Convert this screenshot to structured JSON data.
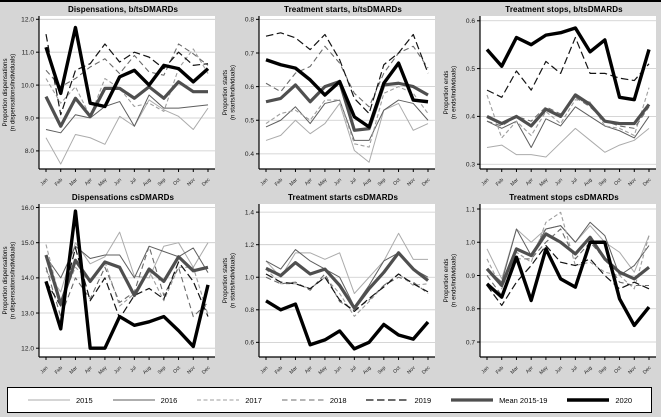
{
  "figure": {
    "background": "#d6d6d6",
    "plot_background": "#ffffff",
    "gridline_color": "#c9c9c9",
    "axis_color": "#000000",
    "tick_label_color": "#1a1a1a"
  },
  "months": [
    "Jan",
    "Feb",
    "Mar",
    "Apr",
    "May",
    "Jun",
    "Jul",
    "Aug",
    "Sep",
    "Oct",
    "Nov",
    "Dec"
  ],
  "legend": {
    "items": [
      {
        "label": "2015",
        "color": "#ababab",
        "width": 1,
        "dash": ""
      },
      {
        "label": "2016",
        "color": "#5e5e5e",
        "width": 1,
        "dash": ""
      },
      {
        "label": "2017",
        "color": "#9e9e9e",
        "width": 1.1,
        "dash": "4,2.5"
      },
      {
        "label": "2018",
        "color": "#6b6b6b",
        "width": 1.1,
        "dash": "5.5,3.5"
      },
      {
        "label": "2019",
        "color": "#141414",
        "width": 1.2,
        "dash": "7.5,3.5"
      },
      {
        "label": "Mean 2015-19",
        "color": "#4f4f4f",
        "width": 3.2,
        "dash": ""
      },
      {
        "label": "2020",
        "color": "#000000",
        "width": 3.4,
        "dash": ""
      }
    ]
  },
  "chart_data": [
    {
      "type": "line",
      "title": "Dispensations, b/tsDMARDs",
      "ylabel": "Proportion dispensations",
      "ylabel2": "(n dispensations/individuals)",
      "ylim": [
        7.45,
        12.1
      ],
      "yticks": [
        {
          "v": 8,
          "label": "8.0"
        },
        {
          "v": 9,
          "label": "9.0"
        },
        {
          "v": 10,
          "label": "10.0"
        },
        {
          "v": 11,
          "label": "11.0"
        },
        {
          "v": 12,
          "label": "12.0"
        }
      ],
      "series": [
        {
          "name": "2015",
          "values": [
            8.4,
            7.6,
            8.5,
            8.4,
            8.2,
            9.05,
            8.75,
            9.55,
            9.25,
            9.05,
            8.65,
            9.3
          ]
        },
        {
          "name": "2016",
          "values": [
            8.65,
            8.55,
            9.1,
            9.0,
            9.35,
            9.5,
            8.75,
            9.7,
            9.3,
            9.3,
            9.35,
            9.4
          ]
        },
        {
          "name": "2017",
          "values": [
            10.2,
            9.45,
            9.95,
            9.05,
            10.2,
            9.9,
            9.35,
            9.45,
            9.2,
            10.5,
            11.1,
            10.35
          ]
        },
        {
          "name": "2018",
          "values": [
            10.45,
            9.95,
            10.2,
            10.55,
            10.8,
            10.35,
            10.9,
            10.4,
            10.3,
            11.25,
            10.95,
            10.6
          ]
        },
        {
          "name": "2019",
          "values": [
            11.55,
            9.1,
            10.45,
            10.65,
            11.25,
            10.7,
            11.0,
            10.85,
            10.5,
            11.0,
            10.6,
            10.65
          ]
        },
        {
          "name": "Mean 2015-19",
          "values": [
            9.65,
            8.75,
            9.6,
            9.05,
            9.9,
            9.9,
            9.6,
            9.95,
            9.6,
            10.1,
            9.8,
            9.8
          ]
        },
        {
          "name": "2020",
          "values": [
            11.15,
            9.75,
            11.75,
            9.45,
            9.35,
            10.25,
            10.45,
            10.0,
            10.6,
            10.5,
            10.1,
            10.5
          ]
        }
      ]
    },
    {
      "type": "line",
      "title": "Treatment starts, b/tsDMARDs",
      "ylabel": "Proportion starts",
      "ylabel2": "(n starts/individuals)",
      "ylim": [
        0.355,
        0.81
      ],
      "yticks": [
        {
          "v": 0.4,
          "label": "0.4"
        },
        {
          "v": 0.5,
          "label": "0.5"
        },
        {
          "v": 0.6,
          "label": "0.6"
        },
        {
          "v": 0.7,
          "label": "0.7"
        },
        {
          "v": 0.8,
          "label": "0.8"
        }
      ],
      "series": [
        {
          "name": "2015",
          "values": [
            0.44,
            0.455,
            0.5,
            0.46,
            0.49,
            0.55,
            0.41,
            0.375,
            0.53,
            0.55,
            0.47,
            0.49
          ]
        },
        {
          "name": "2016",
          "values": [
            0.48,
            0.5,
            0.54,
            0.49,
            0.55,
            0.56,
            0.44,
            0.44,
            0.53,
            0.56,
            0.55,
            0.5
          ]
        },
        {
          "name": "2017",
          "values": [
            0.49,
            0.52,
            0.53,
            0.5,
            0.56,
            0.56,
            0.43,
            0.42,
            0.58,
            0.6,
            0.58,
            0.52
          ]
        },
        {
          "name": "2018",
          "values": [
            0.61,
            0.585,
            0.64,
            0.66,
            0.72,
            0.67,
            0.58,
            0.54,
            0.64,
            0.7,
            0.72,
            0.655
          ]
        },
        {
          "name": "2019",
          "values": [
            0.75,
            0.76,
            0.745,
            0.71,
            0.755,
            0.68,
            0.565,
            0.52,
            0.665,
            0.7,
            0.755,
            0.64
          ]
        },
        {
          "name": "Mean 2015-19",
          "values": [
            0.555,
            0.565,
            0.605,
            0.555,
            0.6,
            0.615,
            0.47,
            0.475,
            0.605,
            0.61,
            0.6,
            0.575
          ]
        },
        {
          "name": "2020",
          "values": [
            0.68,
            0.665,
            0.655,
            0.62,
            0.575,
            0.615,
            0.51,
            0.48,
            0.61,
            0.67,
            0.56,
            0.555
          ]
        }
      ]
    },
    {
      "type": "line",
      "title": "Treatment stops, b/tsDMARDs",
      "ylabel": "Proportion ends",
      "ylabel2": "(n ends/individuals)",
      "ylim": [
        0.29,
        0.61
      ],
      "yticks": [
        {
          "v": 0.3,
          "label": "0.3"
        },
        {
          "v": 0.4,
          "label": "0.4"
        },
        {
          "v": 0.5,
          "label": "0.5"
        },
        {
          "v": 0.6,
          "label": "0.6"
        }
      ],
      "series": [
        {
          "name": "2015",
          "values": [
            0.335,
            0.34,
            0.32,
            0.32,
            0.315,
            0.345,
            0.375,
            0.35,
            0.325,
            0.34,
            0.35,
            0.375
          ]
        },
        {
          "name": "2016",
          "values": [
            0.39,
            0.375,
            0.39,
            0.335,
            0.395,
            0.38,
            0.42,
            0.4,
            0.38,
            0.37,
            0.355,
            0.4
          ]
        },
        {
          "name": "2017",
          "values": [
            0.445,
            0.355,
            0.39,
            0.36,
            0.41,
            0.385,
            0.435,
            0.43,
            0.38,
            0.375,
            0.36,
            0.46
          ]
        },
        {
          "name": "2018",
          "values": [
            0.39,
            0.38,
            0.4,
            0.39,
            0.42,
            0.405,
            0.44,
            0.42,
            0.39,
            0.38,
            0.375,
            0.42
          ]
        },
        {
          "name": "2019",
          "values": [
            0.455,
            0.44,
            0.495,
            0.455,
            0.515,
            0.49,
            0.565,
            0.49,
            0.49,
            0.48,
            0.475,
            0.51
          ]
        },
        {
          "name": "Mean 2015-19",
          "values": [
            0.4,
            0.385,
            0.4,
            0.38,
            0.415,
            0.4,
            0.445,
            0.425,
            0.39,
            0.385,
            0.385,
            0.425
          ]
        },
        {
          "name": "2020",
          "values": [
            0.54,
            0.505,
            0.565,
            0.55,
            0.57,
            0.575,
            0.585,
            0.535,
            0.56,
            0.44,
            0.435,
            0.54
          ]
        }
      ]
    },
    {
      "type": "line",
      "title": "Dispensations csDMARDs",
      "ylabel": "Proportion dispensations",
      "ylabel2": "(n dispensations/individuals)",
      "ylim": [
        11.75,
        16.1
      ],
      "yticks": [
        {
          "v": 12,
          "label": "12.0"
        },
        {
          "v": 13,
          "label": "13.0"
        },
        {
          "v": 14,
          "label": "14.0"
        },
        {
          "v": 15,
          "label": "15.0"
        },
        {
          "v": 16,
          "label": "16.0"
        }
      ],
      "series": [
        {
          "name": "2015",
          "values": [
            14.2,
            13.6,
            15.0,
            14.4,
            14.6,
            15.3,
            14.05,
            14.0,
            14.9,
            15.0,
            14.3,
            15.0
          ]
        },
        {
          "name": "2016",
          "values": [
            14.6,
            14.0,
            14.9,
            14.55,
            14.65,
            14.65,
            14.0,
            14.9,
            14.75,
            14.6,
            14.85,
            14.15
          ]
        },
        {
          "name": "2017",
          "values": [
            14.95,
            13.3,
            14.3,
            13.9,
            14.45,
            13.2,
            13.55,
            14.2,
            13.35,
            14.3,
            14.3,
            12.95
          ]
        },
        {
          "name": "2018",
          "values": [
            14.3,
            12.9,
            14.0,
            13.4,
            14.3,
            13.3,
            13.6,
            14.9,
            13.5,
            14.3,
            12.9,
            13.3
          ]
        },
        {
          "name": "2019",
          "values": [
            13.9,
            13.2,
            14.85,
            13.35,
            14.0,
            12.85,
            13.5,
            13.7,
            13.4,
            14.45,
            13.9,
            12.9
          ]
        },
        {
          "name": "Mean 2015-19",
          "values": [
            14.65,
            13.25,
            14.5,
            13.9,
            14.45,
            14.3,
            13.5,
            14.25,
            13.9,
            14.6,
            14.2,
            14.3
          ]
        },
        {
          "name": "2020",
          "values": [
            13.9,
            12.55,
            15.9,
            12.0,
            12.0,
            12.9,
            12.65,
            12.75,
            12.9,
            12.5,
            12.05,
            13.8
          ]
        }
      ]
    },
    {
      "type": "line",
      "title": "Treatment starts csDMARDs",
      "ylabel": "Proportion starts",
      "ylabel2": "(n starts/individuals)",
      "ylim": [
        0.51,
        1.45
      ],
      "yticks": [
        {
          "v": 0.6,
          "label": "0.6"
        },
        {
          "v": 0.8,
          "label": "0.8"
        },
        {
          "v": 1.0,
          "label": "1.0"
        },
        {
          "v": 1.2,
          "label": "1.2"
        },
        {
          "v": 1.4,
          "label": "1.4"
        }
      ],
      "series": [
        {
          "name": "2015",
          "values": [
            1.1,
            1.0,
            1.15,
            1.15,
            1.11,
            1.15,
            0.9,
            1.0,
            1.1,
            1.27,
            1.11,
            1.11
          ]
        },
        {
          "name": "2016",
          "values": [
            1.1,
            1.05,
            1.17,
            1.1,
            1.05,
            1.0,
            0.82,
            0.95,
            1.1,
            1.15,
            1.05,
            1.0
          ]
        },
        {
          "name": "2017",
          "values": [
            1.05,
            0.96,
            0.96,
            0.93,
            1.0,
            0.9,
            0.76,
            0.85,
            0.95,
            1.02,
            0.95,
            0.96
          ]
        },
        {
          "name": "2018",
          "values": [
            1.0,
            0.96,
            0.97,
            0.92,
            1.02,
            0.85,
            0.8,
            0.86,
            0.95,
            1.0,
            0.97,
            0.9
          ]
        },
        {
          "name": "2019",
          "values": [
            1.02,
            0.97,
            0.96,
            0.93,
            1.0,
            0.86,
            0.79,
            0.87,
            0.94,
            1.02,
            0.96,
            0.91
          ]
        },
        {
          "name": "Mean 2015-19",
          "values": [
            1.055,
            1.01,
            1.09,
            1.02,
            1.05,
            0.95,
            0.81,
            0.93,
            1.03,
            1.15,
            1.05,
            0.98
          ]
        },
        {
          "name": "2020",
          "values": [
            0.855,
            0.8,
            0.835,
            0.585,
            0.615,
            0.67,
            0.56,
            0.6,
            0.71,
            0.645,
            0.62,
            0.725
          ]
        }
      ]
    },
    {
      "type": "line",
      "title": "Treatment stops csDMARDs",
      "ylabel": "Proportion ends",
      "ylabel2": "(n ends/individuals)",
      "ylim": [
        0.655,
        1.115
      ],
      "yticks": [
        {
          "v": 0.7,
          "label": "0.7"
        },
        {
          "v": 0.8,
          "label": "0.8"
        },
        {
          "v": 0.9,
          "label": "0.9"
        },
        {
          "v": 1.0,
          "label": "1.0"
        },
        {
          "v": 1.1,
          "label": "1.1"
        }
      ],
      "series": [
        {
          "name": "2015",
          "values": [
            0.98,
            0.89,
            1.04,
            1.0,
            1.04,
            1.05,
            1.0,
            1.05,
            1.0,
            0.97,
            0.91,
            1.02
          ]
        },
        {
          "name": "2016",
          "values": [
            0.92,
            0.88,
            1.04,
            0.96,
            1.04,
            1.05,
            1.0,
            1.06,
            1.02,
            0.9,
            0.93,
            0.99
          ]
        },
        {
          "name": "2017",
          "values": [
            0.95,
            0.86,
            0.97,
            0.94,
            1.06,
            1.09,
            0.93,
            0.94,
            0.91,
            0.9,
            0.86,
            1.02
          ]
        },
        {
          "name": "2018",
          "values": [
            0.9,
            0.84,
            0.95,
            0.95,
            1.0,
            1.04,
            0.95,
            1.0,
            0.95,
            0.88,
            0.87,
            0.87
          ]
        },
        {
          "name": "2019",
          "values": [
            0.87,
            0.81,
            0.88,
            0.93,
            0.99,
            0.94,
            0.93,
            0.95,
            0.9,
            0.86,
            0.88,
            0.86
          ]
        },
        {
          "name": "Mean 2015-19",
          "values": [
            0.92,
            0.87,
            0.98,
            0.96,
            1.025,
            1.0,
            0.965,
            1.015,
            0.95,
            0.91,
            0.89,
            0.925
          ]
        },
        {
          "name": "2020",
          "values": [
            0.875,
            0.835,
            0.955,
            0.825,
            0.98,
            0.89,
            0.865,
            1.0,
            1.0,
            0.83,
            0.75,
            0.805
          ]
        }
      ]
    }
  ]
}
